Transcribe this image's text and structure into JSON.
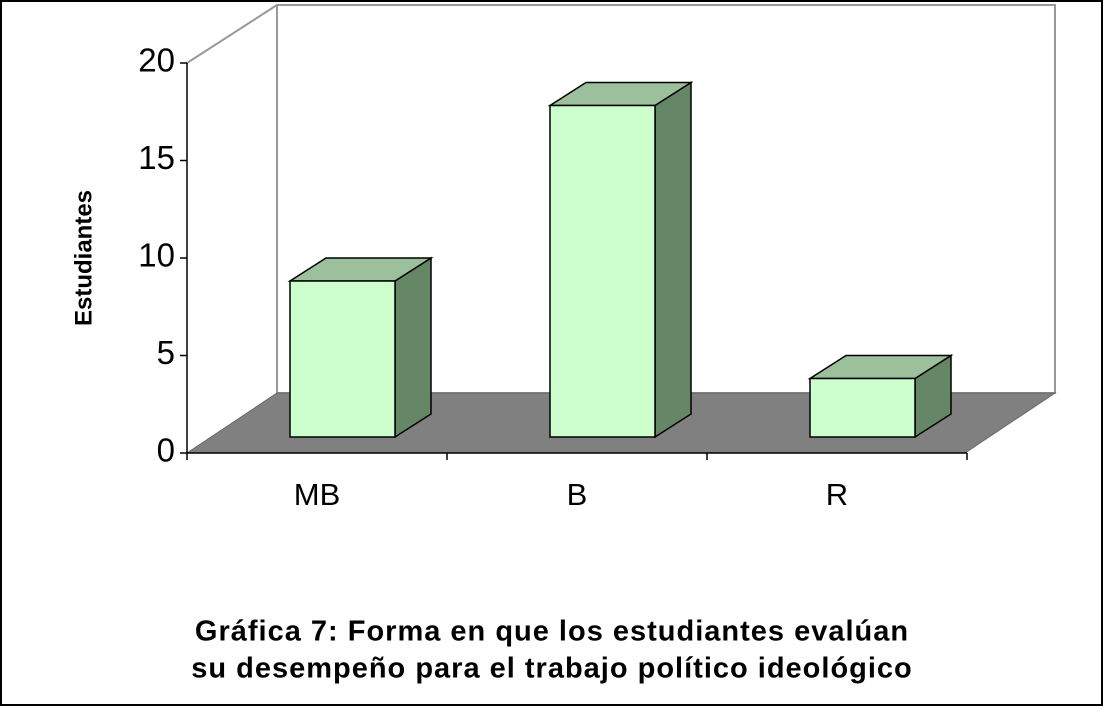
{
  "chart_data": {
    "type": "bar3d",
    "title": [
      "Gráfica 7: Forma en que los estudiantes evalúan",
      "su desempeño para el trabajo político ideológico"
    ],
    "y_label": "Estudiantes",
    "categories": [
      "MB",
      "B",
      "R"
    ],
    "values": [
      8,
      17,
      3
    ],
    "color": "#ccffcc",
    "ylim": [
      0,
      20
    ],
    "yticks": [
      0,
      5,
      10,
      15,
      20
    ]
  }
}
